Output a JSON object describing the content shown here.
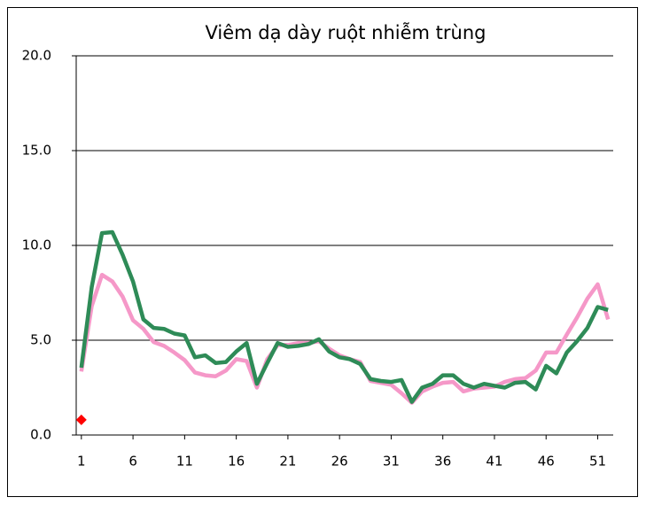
{
  "chart_data": {
    "type": "line",
    "title": "Viêm dạ dày ruột nhiễm trùng",
    "categories": [
      "1",
      null,
      null,
      null,
      null,
      "6",
      null,
      null,
      null,
      null,
      "11",
      null,
      null,
      null,
      null,
      "16",
      null,
      null,
      null,
      null,
      "21",
      null,
      null,
      null,
      null,
      "26",
      null,
      null,
      null,
      null,
      "31",
      null,
      null,
      null,
      null,
      "36",
      null,
      null,
      null,
      null,
      "41",
      null,
      null,
      null,
      null,
      "46",
      null,
      null,
      null,
      null,
      "51",
      null
    ],
    "ylim": [
      0,
      20
    ],
    "yticks": [
      {
        "value": 0,
        "label": "0.0"
      },
      {
        "value": 5,
        "label": "5.0"
      },
      {
        "value": 10,
        "label": "10.0"
      },
      {
        "value": 15,
        "label": "15.0"
      },
      {
        "value": 20,
        "label": "20.0"
      }
    ],
    "grid": true,
    "series": [
      {
        "color": "#f598c8",
        "style": "line",
        "values": [
          3.35,
          6.8,
          8.45,
          8.1,
          7.3,
          6.05,
          5.6,
          4.9,
          4.7,
          4.35,
          3.95,
          3.3,
          3.15,
          3.1,
          3.4,
          4.0,
          3.9,
          2.5,
          4.0,
          4.75,
          4.75,
          4.85,
          4.85,
          4.95,
          4.55,
          4.2,
          4.0,
          3.85,
          2.85,
          2.75,
          2.65,
          2.2,
          1.7,
          2.3,
          2.55,
          2.75,
          2.8,
          2.3,
          2.45,
          2.5,
          2.55,
          2.8,
          2.95,
          3.0,
          3.4,
          4.35,
          4.35,
          5.3,
          6.2,
          7.2,
          7.95,
          6.1
        ]
      },
      {
        "color": "#2e8b57",
        "style": "line",
        "values": [
          3.55,
          7.8,
          10.65,
          10.7,
          9.5,
          8.1,
          6.1,
          5.65,
          5.6,
          5.35,
          5.25,
          4.1,
          4.2,
          3.8,
          3.85,
          4.4,
          4.85,
          2.7,
          3.8,
          4.85,
          4.65,
          4.7,
          4.8,
          5.05,
          4.4,
          4.1,
          4.0,
          3.75,
          2.95,
          2.85,
          2.8,
          2.9,
          1.75,
          2.5,
          2.7,
          3.15,
          3.15,
          2.7,
          2.5,
          2.7,
          2.6,
          2.5,
          2.75,
          2.8,
          2.4,
          3.65,
          3.25,
          4.35,
          4.95,
          5.65,
          6.75,
          6.6
        ]
      },
      {
        "color": "#ff0000",
        "style": "diamond",
        "values": [
          0.8,
          null,
          null,
          null,
          null,
          null,
          null,
          null,
          null,
          null,
          null,
          null,
          null,
          null,
          null,
          null,
          null,
          null,
          null,
          null,
          null,
          null,
          null,
          null,
          null,
          null,
          null,
          null,
          null,
          null,
          null,
          null,
          null,
          null,
          null,
          null,
          null,
          null,
          null,
          null,
          null,
          null,
          null,
          null,
          null,
          null,
          null,
          null,
          null,
          null,
          null,
          null
        ]
      }
    ]
  }
}
